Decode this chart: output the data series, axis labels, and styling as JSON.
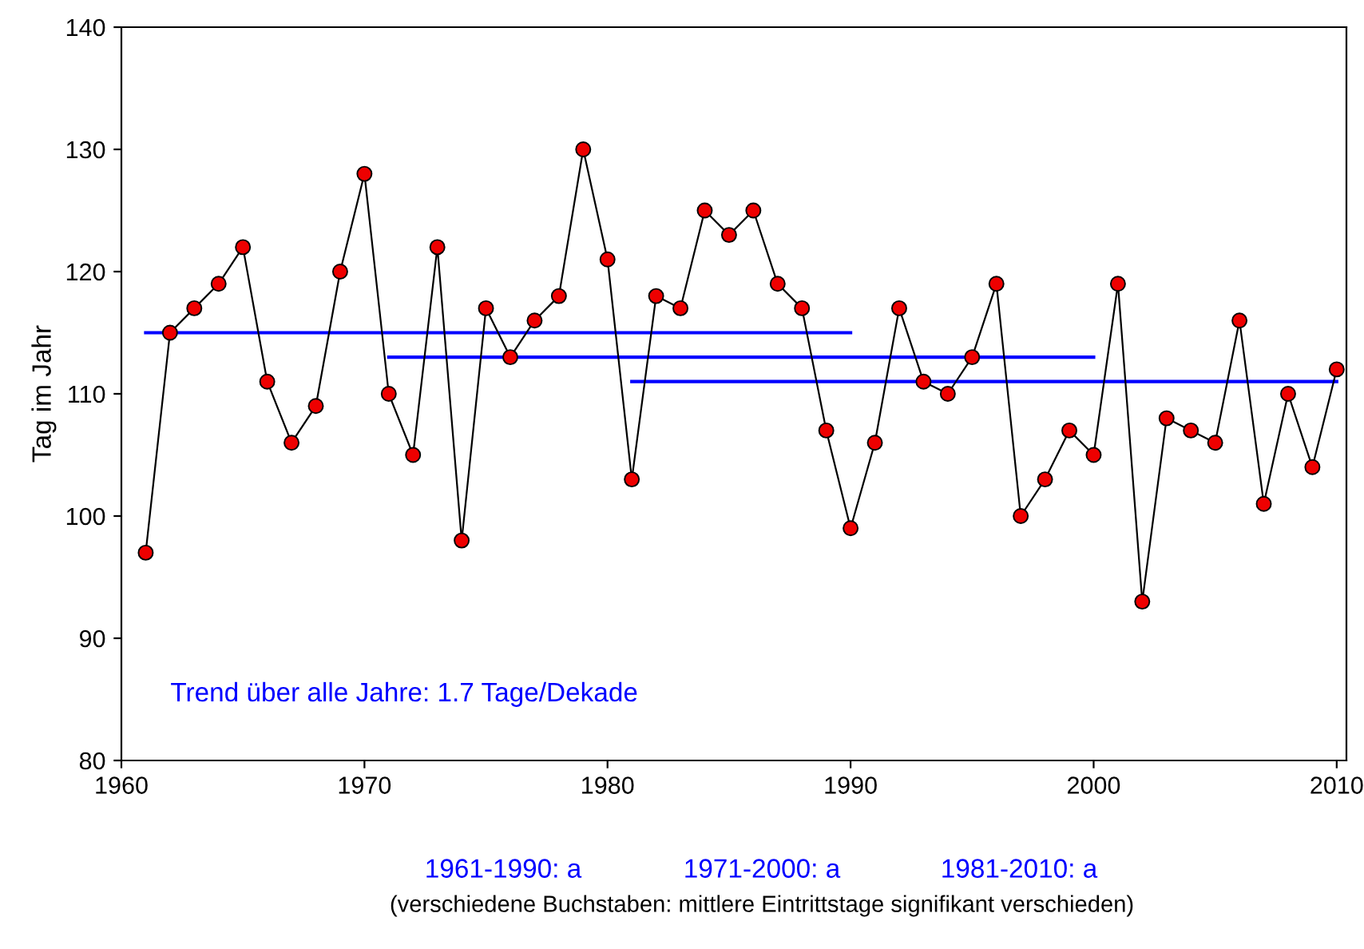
{
  "chart_data": {
    "type": "line",
    "ylabel": "Tag im Jahr",
    "x": [
      1961,
      1962,
      1963,
      1964,
      1965,
      1966,
      1967,
      1968,
      1969,
      1970,
      1971,
      1972,
      1973,
      1974,
      1975,
      1976,
      1977,
      1978,
      1979,
      1980,
      1981,
      1982,
      1983,
      1984,
      1985,
      1986,
      1987,
      1988,
      1989,
      1990,
      1991,
      1992,
      1993,
      1994,
      1995,
      1996,
      1997,
      1998,
      1999,
      2000,
      2001,
      2002,
      2003,
      2004,
      2005,
      2006,
      2007,
      2008,
      2009,
      2010
    ],
    "series": [
      {
        "color": "#000000",
        "marker": "circle",
        "colors": [
          "#ee0000",
          "#ee0000",
          "#ee0000",
          "#ee0000",
          "#ee0000",
          "#ee0000",
          "#ee0000",
          "#ee0000",
          "#ee0000",
          "#ee0000",
          "#ee0000",
          "#ee0000",
          "#ee0000",
          "#ee0000",
          "#ee0000",
          "#ee0000",
          "#ee0000",
          "#ee0000",
          "#ee0000",
          "#ee0000",
          "#ee0000",
          "#ee0000",
          "#ee0000",
          "#ee0000",
          "#ee0000",
          "#ee0000",
          "#ee0000",
          "#ee0000",
          "#ee0000",
          "#ee0000",
          "#ee0000",
          "#ee0000",
          "#ee0000",
          "#ee0000",
          "#ee0000",
          "#ee0000",
          "#ee0000",
          "#ee0000",
          "#ee0000",
          "#ee0000",
          "#ee0000",
          "#ee0000",
          "#ee0000",
          "#ee0000",
          "#ee0000",
          "#ee0000",
          "#ee0000",
          "#ee0000",
          "#ee0000",
          "#ee0000"
        ],
        "values": [
          97,
          115,
          117,
          119,
          122,
          111,
          106,
          109,
          120,
          128,
          110,
          105,
          122,
          98,
          117,
          113,
          116,
          118,
          130,
          121,
          103,
          118,
          117,
          125,
          123,
          125,
          119,
          117,
          107,
          99,
          106,
          117,
          111,
          110,
          113,
          119,
          100,
          103,
          107,
          105,
          119,
          93,
          108,
          107,
          106,
          116,
          101,
          110,
          104,
          112
        ]
      },
      {
        "color": "#0000ff",
        "marker": "none",
        "x": [
          1961,
          1990
        ],
        "values": [
          115,
          115
        ]
      },
      {
        "color": "#0000ff",
        "marker": "none",
        "x": [
          1971,
          2000
        ],
        "values": [
          113,
          113
        ]
      },
      {
        "color": "#0000ff",
        "marker": "none",
        "x": [
          1981,
          2010
        ],
        "values": [
          111,
          111
        ]
      }
    ],
    "xlim": [
      1960,
      2010.4
    ],
    "xticks": [
      1960,
      1970,
      1980,
      1990,
      2000,
      2010
    ],
    "ylim": [
      80,
      140
    ],
    "yticks": [
      80,
      90,
      100,
      110,
      120,
      130,
      140
    ],
    "grid": false,
    "legend": false,
    "annotations": [
      "Trend über alle Jahre: 1.7 Tage/Dekade",
      "1961-1990: a",
      "1971-2000: a",
      "1981-2010: a",
      "(verschiedene Buchstaben: mittlere Eintrittstage signifikant verschieden)"
    ]
  }
}
